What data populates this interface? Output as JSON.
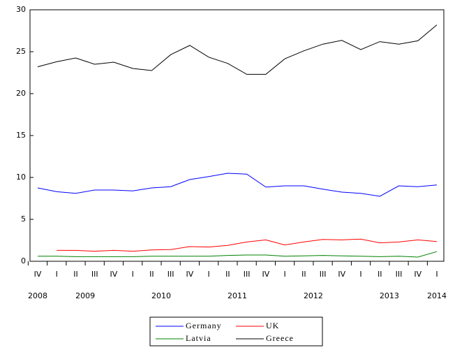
{
  "chart_data": {
    "type": "line",
    "categories": [
      "IV",
      "I",
      "II",
      "III",
      "IV",
      "I",
      "II",
      "III",
      "IV",
      "I",
      "II",
      "III",
      "IV",
      "I",
      "II",
      "III",
      "IV",
      "I",
      "II",
      "III",
      "IV",
      "I"
    ],
    "year_groups": [
      {
        "label": "2008",
        "count": 1
      },
      {
        "label": "2009",
        "count": 4
      },
      {
        "label": "2010",
        "count": 4
      },
      {
        "label": "2011",
        "count": 4
      },
      {
        "label": "2012",
        "count": 4
      },
      {
        "label": "2013",
        "count": 4
      },
      {
        "label": "2014",
        "count": 1
      }
    ],
    "series": [
      {
        "name": "Germany",
        "color": "#0000ff",
        "values": [
          8.75,
          8.3,
          8.1,
          8.5,
          8.5,
          8.4,
          8.75,
          8.9,
          9.75,
          10.1,
          10.5,
          10.4,
          8.85,
          9.0,
          9.0,
          8.6,
          8.25,
          8.1,
          7.75,
          9.0,
          8.9,
          9.1
        ]
      },
      {
        "name": "UK",
        "color": "#ff0000",
        "values": [
          null,
          1.3,
          1.3,
          1.2,
          1.3,
          1.2,
          1.35,
          1.4,
          1.75,
          1.7,
          1.9,
          2.3,
          2.55,
          1.95,
          2.3,
          2.6,
          2.55,
          2.65,
          2.2,
          2.3,
          2.55,
          2.35
        ]
      },
      {
        "name": "Latvia",
        "color": "#008000",
        "values": [
          0.6,
          0.6,
          0.55,
          0.55,
          0.55,
          0.55,
          0.6,
          0.6,
          0.6,
          0.6,
          0.7,
          0.75,
          0.75,
          0.6,
          0.65,
          0.7,
          0.65,
          0.6,
          0.55,
          0.6,
          0.5,
          1.15
        ]
      },
      {
        "name": "Greece",
        "color": "#000000",
        "values": [
          23.2,
          23.8,
          24.25,
          23.5,
          23.75,
          23.0,
          22.75,
          24.65,
          25.75,
          24.35,
          23.6,
          22.3,
          22.3,
          24.15,
          25.1,
          25.9,
          26.35,
          25.25,
          26.2,
          25.9,
          26.3,
          28.2
        ]
      }
    ],
    "ylim": [
      0,
      30
    ],
    "yticks": [
      0,
      5,
      10,
      15,
      20,
      25,
      30
    ],
    "grid": false,
    "legend": "bottom"
  }
}
